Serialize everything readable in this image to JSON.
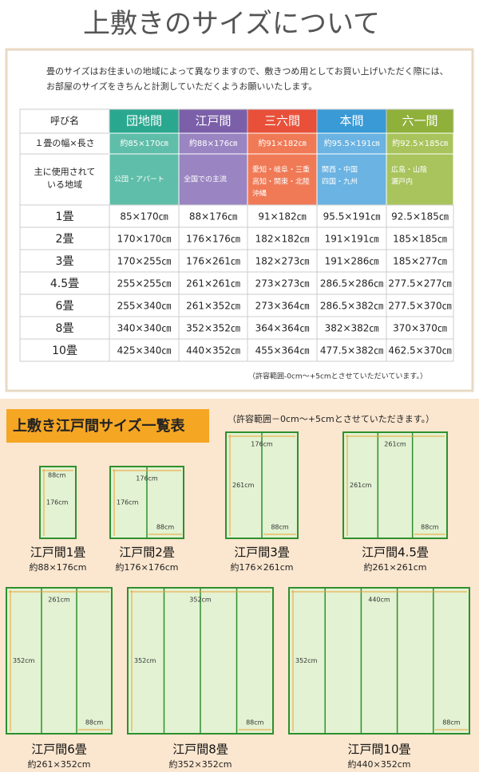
{
  "title": "上敷きのサイズについて",
  "intro": [
    "畳のサイズはお住まいの地域によって異なりますので、敷きつめ用としてお買い上げいただく際には、",
    "お部屋のサイズをきちんと計測していただくようお願いいたします。"
  ],
  "table": {
    "header": [
      "呼び名",
      "団地間",
      "江戸間",
      "三六間",
      "本間",
      "六一間"
    ],
    "tatami_size": {
      "label": "１畳の幅×長さ",
      "cells": [
        "約85×170㎝",
        "約88×176㎝",
        "約91×182㎝",
        "約95.5×191㎝",
        "約92.5×185㎝"
      ]
    },
    "region": {
      "label": [
        "主に使用されて",
        "いる地域"
      ],
      "cells": [
        [
          "公団・アパート"
        ],
        [
          "全国での主流"
        ],
        [
          "愛知・岐阜・三重",
          "高知・関東・北陸",
          "沖縄"
        ],
        [
          "関西・中国",
          "四国・九州"
        ],
        [
          "広島・山陰",
          "瀬戸内"
        ]
      ]
    },
    "rows": [
      [
        "1畳",
        "85×170㎝",
        "88×176㎝",
        "91×182㎝",
        "95.5×191㎝",
        "92.5×185㎝"
      ],
      [
        "2畳",
        "170×170㎝",
        "176×176㎝",
        "182×182㎝",
        "191×191㎝",
        "185×185㎝"
      ],
      [
        "3畳",
        "170×255㎝",
        "176×261㎝",
        "182×273㎝",
        "191×286㎝",
        "185×277㎝"
      ],
      [
        "4.5畳",
        "255×255㎝",
        "261×261㎝",
        "273×273㎝",
        "286.5×286㎝",
        "277.5×277㎝"
      ],
      [
        "6畳",
        "255×340㎝",
        "261×352㎝",
        "273×364㎝",
        "286.5×382㎝",
        "277.5×370㎝"
      ],
      [
        "8畳",
        "340×340㎝",
        "352×352㎝",
        "364×364㎝",
        "382×382㎝",
        "370×370㎝"
      ],
      [
        "10畳",
        "425×340㎝",
        "440×352㎝",
        "455×364㎝",
        "477.5×382㎝",
        "462.5×370㎝"
      ]
    ],
    "note": "（許容範囲-0cm～+5cmとさせていただいています。）"
  },
  "edoma": {
    "heading": "上敷き江戸間サイズ一覧表",
    "note": "（許容範囲－0cm～+5cmとさせていただきます。）",
    "items": [
      {
        "name": "江戸間1畳",
        "size": "約88×176cm",
        "labels": [
          "88cm",
          "176cm"
        ]
      },
      {
        "name": "江戸間2畳",
        "size": "約176×176cm",
        "labels": [
          "176cm",
          "176cm",
          "88cm"
        ]
      },
      {
        "name": "江戸間3畳",
        "size": "約176×261cm",
        "labels": [
          "176cm",
          "261cm",
          "88cm"
        ]
      },
      {
        "name": "江戸間4.5畳",
        "size": "約261×261cm",
        "labels": [
          "261cm",
          "261cm",
          "88cm"
        ]
      },
      {
        "name": "江戸間6畳",
        "size": "約261×352cm",
        "labels": [
          "261cm",
          "352cm",
          "88cm"
        ]
      },
      {
        "name": "江戸間8畳",
        "size": "約352×352cm",
        "labels": [
          "352cm",
          "352cm",
          "88cm"
        ]
      },
      {
        "name": "江戸間10畳",
        "size": "約440×352cm",
        "labels": [
          "440cm",
          "352cm",
          "88cm"
        ]
      }
    ]
  }
}
